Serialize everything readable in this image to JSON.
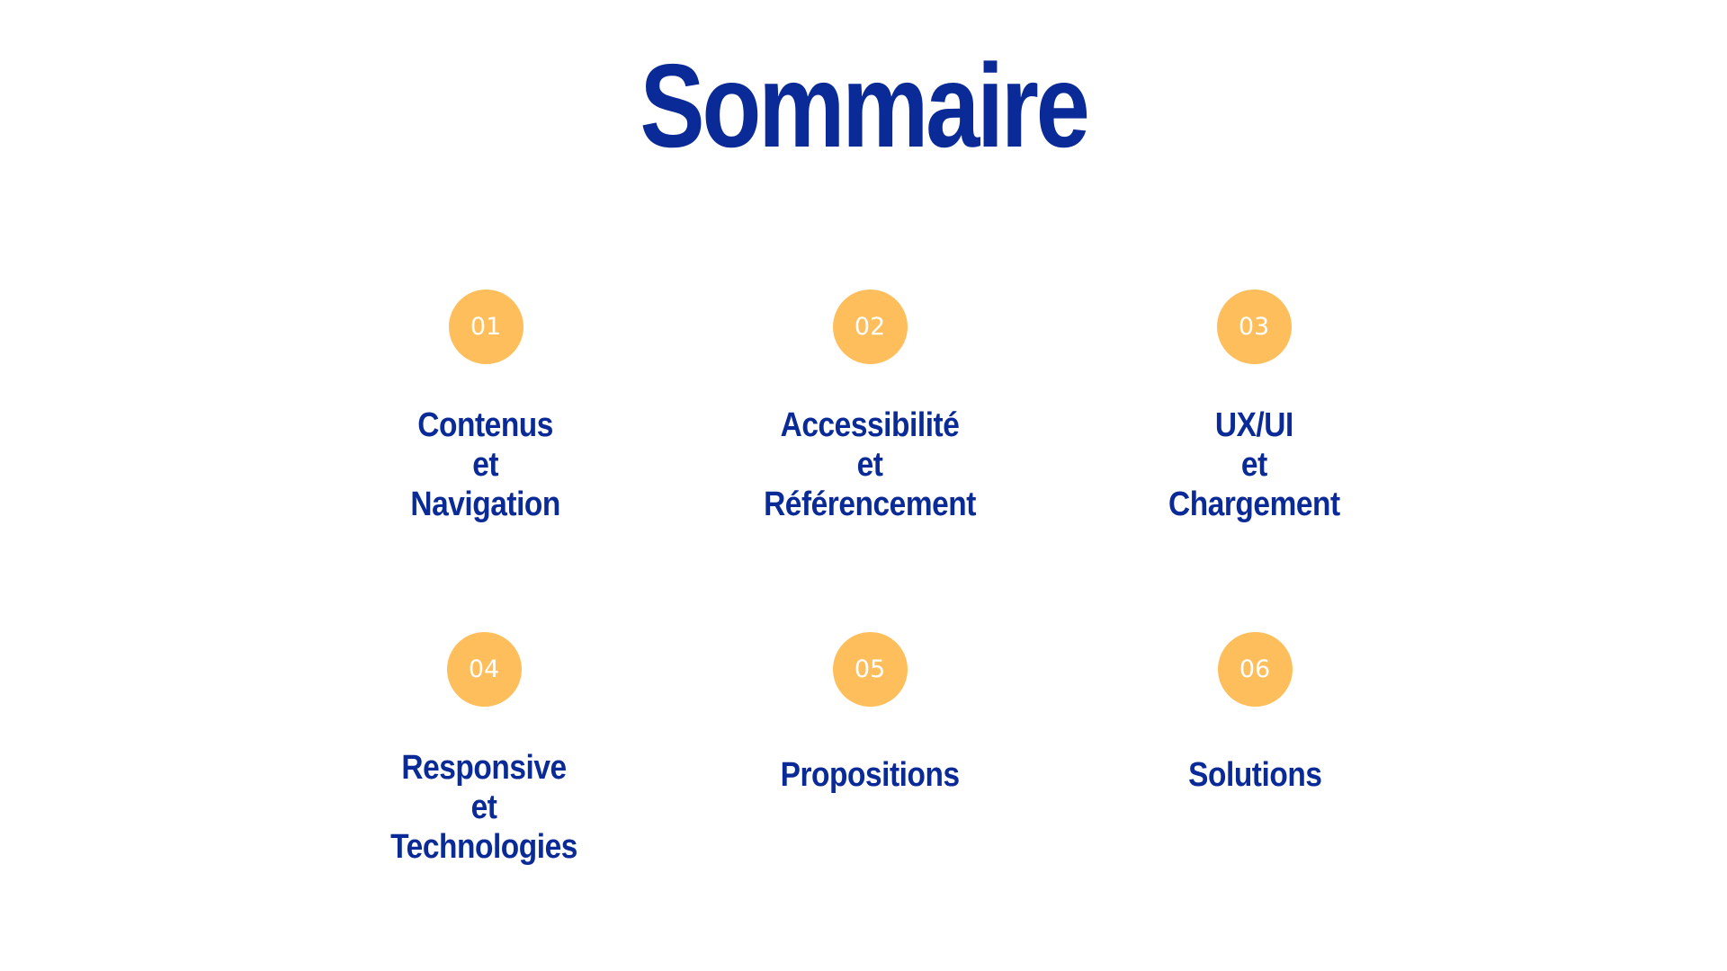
{
  "slide": {
    "title": "Sommaire",
    "badge_color": "#ffbe5c",
    "text_color": "#0a2a97",
    "items": [
      {
        "number": "01",
        "lines": [
          "Contenus",
          "et",
          "Navigation"
        ]
      },
      {
        "number": "02",
        "lines": [
          "Accessibilité",
          "et",
          "Référencement"
        ]
      },
      {
        "number": "03",
        "lines": [
          "UX/UI",
          "et",
          "Chargement"
        ]
      },
      {
        "number": "04",
        "lines": [
          "Responsive",
          "et",
          "Technologies"
        ]
      },
      {
        "number": "05",
        "lines": [
          "Propositions"
        ]
      },
      {
        "number": "06",
        "lines": [
          "Solutions"
        ]
      }
    ]
  }
}
